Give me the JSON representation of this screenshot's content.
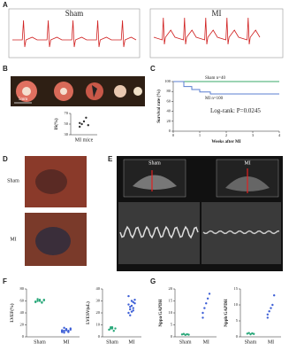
{
  "panels": {
    "a": {
      "label": "A",
      "left": "Sham",
      "right": "MI"
    },
    "b": {
      "label": "B",
      "scale": "5mm"
    },
    "c": {
      "label": "C"
    },
    "d": {
      "label": "D",
      "top": "Sham",
      "bottom": "MI"
    },
    "e": {
      "label": "E",
      "left": "Sham",
      "right": "MI"
    },
    "f": {
      "label": "F"
    },
    "g": {
      "label": "G"
    }
  },
  "chart_data": [
    {
      "type": "dot",
      "ylabel": "IS(%)",
      "categories": [
        "MI mice"
      ],
      "colors": [
        "#333333"
      ],
      "groups": [
        [
          45,
          50,
          55,
          62,
          48,
          52
        ]
      ],
      "ylim": [
        30,
        70
      ],
      "yticks": [
        30,
        50,
        70
      ]
    },
    {
      "type": "line",
      "xlabel": "Weeks after MI",
      "ylabel": "Survival rate (%)",
      "xlim": [
        0,
        4
      ],
      "xticks": [
        0,
        1,
        2,
        3,
        4
      ],
      "ylim": [
        0,
        100
      ],
      "yticks": [
        0,
        20,
        40,
        60,
        80,
        100
      ],
      "annotation": "Log-rank: P=0.0245",
      "series": [
        {
          "name": "Sham n=40",
          "color": "#3aa86a",
          "x": [
            0,
            4
          ],
          "values": [
            100,
            100
          ]
        },
        {
          "name": "MI n=100",
          "color": "#5b7fd0",
          "x": [
            0,
            0.4,
            0.4,
            0.7,
            0.7,
            1,
            1,
            1.4,
            1.4,
            4
          ],
          "values": [
            100,
            100,
            90,
            90,
            84,
            84,
            79,
            79,
            75,
            75
          ]
        }
      ]
    },
    {
      "type": "dot",
      "ylabel": "LVEF(%)",
      "categories": [
        "Sham",
        "MI"
      ],
      "colors": [
        "#2aa87a",
        "#3d5fd6"
      ],
      "groups": [
        [
          58,
          60,
          62,
          57,
          61,
          59,
          63,
          60,
          58,
          62
        ],
        [
          8,
          10,
          12,
          9,
          14,
          11,
          7,
          13,
          10,
          12,
          9,
          15,
          11,
          8
        ]
      ],
      "ylim": [
        0,
        80
      ],
      "yticks": [
        0,
        20,
        40,
        60,
        80
      ]
    },
    {
      "type": "dot",
      "ylabel": "LVESV(uL)",
      "categories": [
        "Sham",
        "MI"
      ],
      "colors": [
        "#2aa87a",
        "#3d5fd6"
      ],
      "groups": [
        [
          6,
          7,
          8,
          5,
          7,
          6,
          8,
          7
        ],
        [
          20,
          25,
          30,
          22,
          28,
          34,
          18,
          26,
          24,
          31,
          27,
          23,
          21,
          29
        ]
      ],
      "ylim": [
        0,
        40
      ],
      "yticks": [
        0,
        10,
        20,
        30,
        40
      ]
    },
    {
      "type": "dot",
      "ylabel": "Nppa/GAPDH",
      "categories": [
        "Sham",
        "MI"
      ],
      "colors": [
        "#2aa87a",
        "#3d5fd6"
      ],
      "groups": [
        [
          1,
          1.2,
          0.8,
          1.1,
          0.9
        ],
        [
          8,
          12,
          14,
          16,
          18,
          10
        ]
      ],
      "ylim": [
        0,
        20
      ],
      "yticks": [
        0,
        5,
        10,
        15,
        20
      ]
    },
    {
      "type": "dot",
      "ylabel": "Nppb/GAPDH",
      "categories": [
        "Sham",
        "MI"
      ],
      "colors": [
        "#2aa87a",
        "#3d5fd6"
      ],
      "groups": [
        [
          1,
          1.2,
          0.8,
          1.1,
          0.9
        ],
        [
          6,
          8,
          9,
          10,
          13,
          7
        ]
      ],
      "ylim": [
        0,
        15
      ],
      "yticks": [
        0,
        5,
        10,
        15
      ]
    }
  ]
}
